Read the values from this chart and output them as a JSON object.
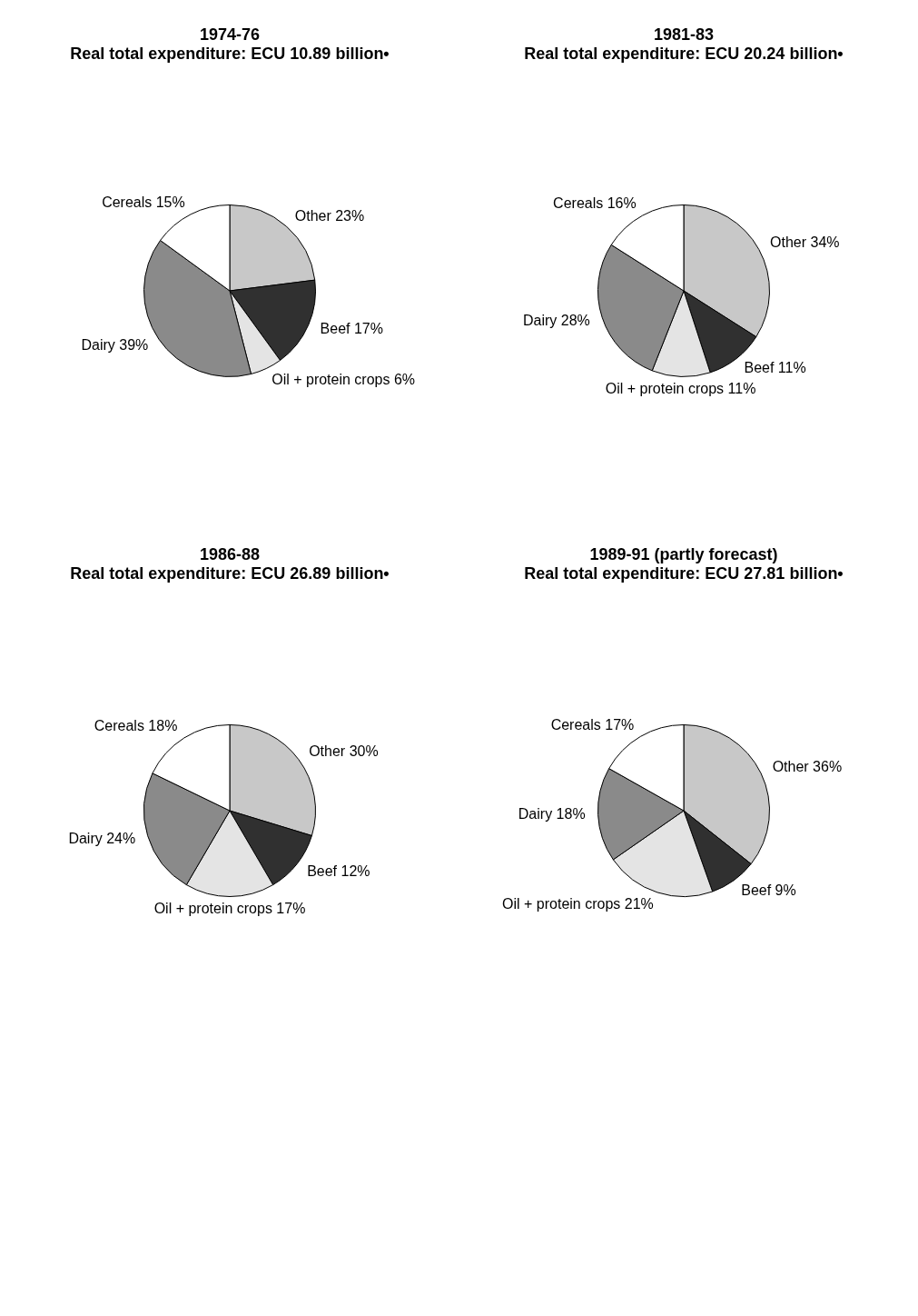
{
  "chart_data": [
    {
      "type": "pie",
      "title": "1974-76",
      "subtitle": "Real total expenditure: ECU 10.89 billion•",
      "categories": [
        "Other",
        "Beef",
        "Oil + protein crops",
        "Dairy",
        "Cereals"
      ],
      "values": [
        23,
        17,
        6,
        39,
        15
      ],
      "value_labels": [
        "23%",
        "17%",
        "6%",
        "39%",
        "15%"
      ],
      "colors": [
        "#c8c8c8",
        "#303030",
        "#e4e4e4",
        "#8a8a8a",
        "#ffffff"
      ]
    },
    {
      "type": "pie",
      "title": "1981-83",
      "subtitle": "Real total expenditure: ECU 20.24 billion•",
      "categories": [
        "Other",
        "Beef",
        "Oil + protein crops",
        "Dairy",
        "Cereals"
      ],
      "values": [
        34,
        11,
        11,
        28,
        16
      ],
      "value_labels": [
        "34%",
        "11%",
        "11%",
        "28%",
        "16%"
      ],
      "colors": [
        "#c8c8c8",
        "#303030",
        "#e4e4e4",
        "#8a8a8a",
        "#ffffff"
      ]
    },
    {
      "type": "pie",
      "title": "1986-88",
      "subtitle": "Real total expenditure: ECU 26.89 billion•",
      "categories": [
        "Other",
        "Beef",
        "Oil + protein crops",
        "Dairy",
        "Cereals"
      ],
      "values": [
        30,
        12,
        17,
        24,
        18
      ],
      "value_labels": [
        "30%",
        "12%",
        "17%",
        "24%",
        "18%"
      ],
      "colors": [
        "#c8c8c8",
        "#303030",
        "#e4e4e4",
        "#8a8a8a",
        "#ffffff"
      ]
    },
    {
      "type": "pie",
      "title": "1989-91 (partly forecast)",
      "subtitle": "Real total expenditure: ECU 27.81 billion•",
      "categories": [
        "Other",
        "Beef",
        "Oil + protein crops",
        "Dairy",
        "Cereals"
      ],
      "values": [
        36,
        9,
        21,
        18,
        17
      ],
      "value_labels": [
        "36%",
        "9%",
        "21%",
        "18%",
        "17%"
      ],
      "colors": [
        "#c8c8c8",
        "#303030",
        "#e4e4e4",
        "#8a8a8a",
        "#ffffff"
      ]
    }
  ]
}
